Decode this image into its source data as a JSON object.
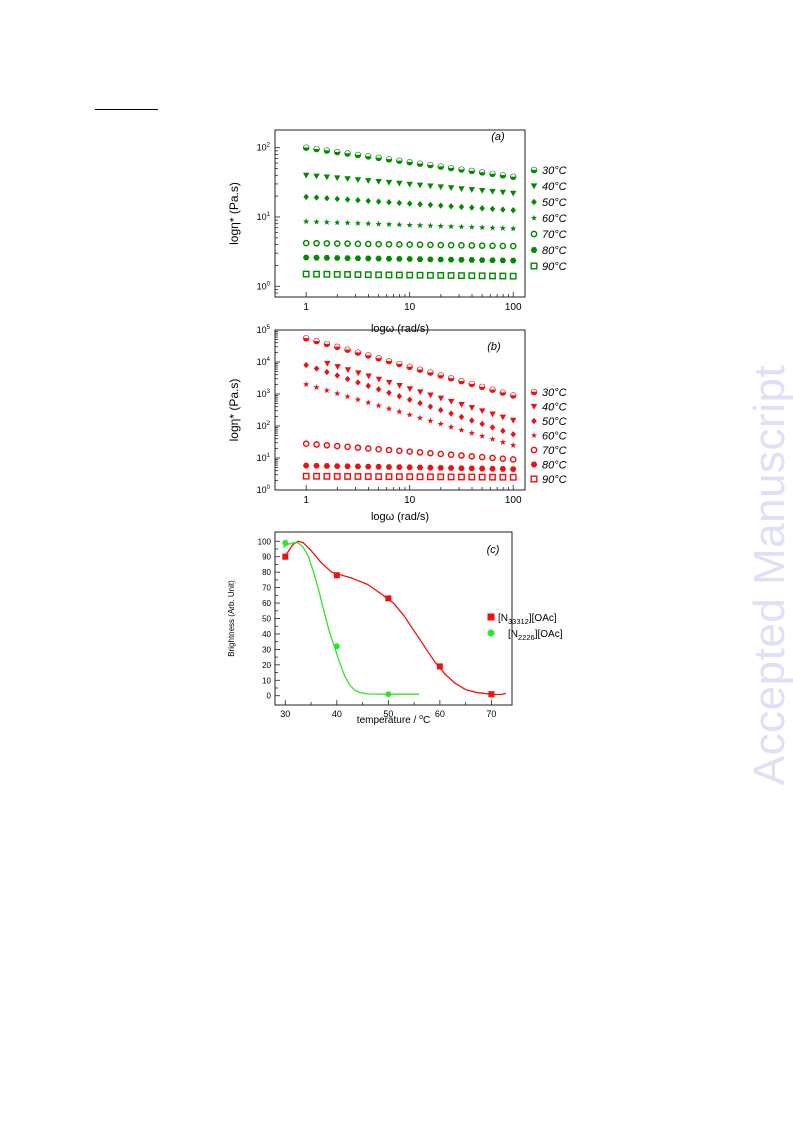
{
  "watermark": "Accepted Manuscript",
  "chart_data": [
    {
      "type": "scatter",
      "panel_label": "(a)",
      "xlabel": "logω (rad/s)",
      "ylabel": "logη* (Pa.s)",
      "xscale": "log",
      "yscale": "log",
      "xlim": [
        0.5,
        130
      ],
      "ylim": [
        0.7,
        180
      ],
      "x_ticks": [
        {
          "v": 1,
          "t": "1"
        },
        {
          "v": 10,
          "t": "10"
        },
        {
          "v": 100,
          "t": "100"
        }
      ],
      "y_ticks": [
        {
          "v": 1,
          "base": "10",
          "exp": "0"
        },
        {
          "v": 10,
          "base": "10",
          "exp": "1"
        },
        {
          "v": 100,
          "base": "10",
          "exp": "2"
        }
      ],
      "color": "#008a00",
      "legend_position": "right",
      "series": [
        {
          "name": "30°C",
          "marker": "circle-half",
          "start": 1,
          "end": 100,
          "n": 21,
          "y_start": 100,
          "y_end": 38
        },
        {
          "name": "40°C",
          "marker": "triangle-down",
          "start": 1,
          "end": 100,
          "n": 21,
          "y_start": 40,
          "y_end": 22
        },
        {
          "name": "50°C",
          "marker": "diamond",
          "start": 1,
          "end": 100,
          "n": 21,
          "y_start": 19.5,
          "y_end": 12.5
        },
        {
          "name": "60°C",
          "marker": "star",
          "start": 1,
          "end": 100,
          "n": 21,
          "y_start": 8.6,
          "y_end": 6.8
        },
        {
          "name": "70°C",
          "marker": "circle-open",
          "start": 1,
          "end": 100,
          "n": 21,
          "y_start": 4.2,
          "y_end": 3.8
        },
        {
          "name": "80°C",
          "marker": "hexagon",
          "start": 1,
          "end": 100,
          "n": 21,
          "y_start": 2.6,
          "y_end": 2.35
        },
        {
          "name": "90°C",
          "marker": "square-open",
          "start": 1,
          "end": 100,
          "n": 21,
          "y_start": 1.5,
          "y_end": 1.4
        }
      ]
    },
    {
      "type": "scatter",
      "panel_label": "(b)",
      "xlabel": "logω (rad/s)",
      "ylabel": "logη* (Pa.s)",
      "xscale": "log",
      "yscale": "log",
      "xlim": [
        0.5,
        130
      ],
      "ylim": [
        1,
        100000
      ],
      "x_ticks": [
        {
          "v": 1,
          "t": "1"
        },
        {
          "v": 10,
          "t": "10"
        },
        {
          "v": 100,
          "t": "100"
        }
      ],
      "y_ticks": [
        {
          "v": 1,
          "base": "10",
          "exp": "0"
        },
        {
          "v": 10,
          "base": "10",
          "exp": "1"
        },
        {
          "v": 100,
          "base": "10",
          "exp": "2"
        },
        {
          "v": 1000,
          "base": "10",
          "exp": "3"
        },
        {
          "v": 10000,
          "base": "10",
          "exp": "4"
        },
        {
          "v": 100000,
          "base": "10",
          "exp": "5"
        }
      ],
      "color": "#ee1111",
      "legend_position": "right",
      "series": [
        {
          "name": "30°C",
          "marker": "circle-half",
          "start": 1,
          "end": 100,
          "n": 21,
          "y_start": 55000,
          "y_end": 900
        },
        {
          "name": "40°C",
          "marker": "triangle-down",
          "start": 1.6,
          "end": 100,
          "n": 19,
          "y_start": 9000,
          "y_end": 150
        },
        {
          "name": "50°C",
          "marker": "diamond",
          "start": 1,
          "end": 100,
          "n": 21,
          "y_start": 8000,
          "y_end": 55
        },
        {
          "name": "60°C",
          "marker": "star",
          "start": 1,
          "end": 100,
          "n": 21,
          "y_start": 2000,
          "y_end": 25
        },
        {
          "name": "70°C",
          "marker": "circle-open",
          "start": 1,
          "end": 100,
          "n": 21,
          "y_start": 28,
          "y_end": 9
        },
        {
          "name": "80°C",
          "marker": "hexagon",
          "start": 1,
          "end": 100,
          "n": 21,
          "y_start": 5.8,
          "y_end": 4.5
        },
        {
          "name": "90°C",
          "marker": "square-open",
          "start": 1,
          "end": 100,
          "n": 21,
          "y_start": 2.7,
          "y_end": 2.5
        }
      ]
    },
    {
      "type": "line",
      "panel_label": "(c)",
      "xlabel": "temperature / ",
      "xlabel_sup": "o",
      "xlabel_tail": "C",
      "ylabel": "Brightness (Arb. Unit)",
      "xlim": [
        28,
        74
      ],
      "ylim": [
        -6,
        106
      ],
      "x_ticks": [
        30,
        40,
        50,
        60,
        70
      ],
      "y_ticks": [
        0,
        10,
        20,
        30,
        40,
        50,
        60,
        70,
        80,
        90,
        100
      ],
      "legend_position": "right",
      "series": [
        {
          "name_main": "[N",
          "name_sub": "33312",
          "name_tail": "][OAc]",
          "color": "#ee1111",
          "marker": "square",
          "points": [
            [
              30,
              90
            ],
            [
              40,
              78
            ],
            [
              50,
              63
            ],
            [
              60,
              19
            ],
            [
              70,
              1
            ]
          ],
          "curve": [
            [
              29.5,
              89
            ],
            [
              30.5,
              93
            ],
            [
              31.5,
              98
            ],
            [
              32.5,
              100
            ],
            [
              33.5,
              99
            ],
            [
              35,
              94
            ],
            [
              37,
              86
            ],
            [
              39,
              80
            ],
            [
              41,
              78
            ],
            [
              43,
              76
            ],
            [
              46,
              72
            ],
            [
              49,
              65
            ],
            [
              51,
              60
            ],
            [
              53,
              52
            ],
            [
              55,
              42
            ],
            [
              57,
              32
            ],
            [
              59,
              22
            ],
            [
              61,
              14
            ],
            [
              63,
              8
            ],
            [
              65,
              4
            ],
            [
              67,
              2.2
            ],
            [
              69,
              1.3
            ],
            [
              70.5,
              0.8
            ],
            [
              72,
              0.8
            ],
            [
              72.8,
              1.6
            ]
          ]
        },
        {
          "name_main": "[N",
          "name_sub": "2226",
          "name_tail": "][OAc]",
          "color": "#2ee52e",
          "marker": "circle",
          "points": [
            [
              30,
              99
            ],
            [
              40,
              32
            ],
            [
              50,
              1
            ]
          ],
          "curve": [
            [
              29.5,
              96
            ],
            [
              30.5,
              98
            ],
            [
              31.5,
              99
            ],
            [
              32.5,
              99
            ],
            [
              33.5,
              96
            ],
            [
              34.5,
              90
            ],
            [
              35.5,
              80
            ],
            [
              36.5,
              68
            ],
            [
              37.5,
              55
            ],
            [
              38.5,
              42
            ],
            [
              39.5,
              32
            ],
            [
              40.5,
              22
            ],
            [
              41.5,
              13
            ],
            [
              42.5,
              7
            ],
            [
              43.5,
              3.5
            ],
            [
              44.5,
              2
            ],
            [
              46,
              1.2
            ],
            [
              50,
              1
            ],
            [
              53,
              1
            ],
            [
              56,
              1
            ]
          ]
        }
      ]
    }
  ]
}
